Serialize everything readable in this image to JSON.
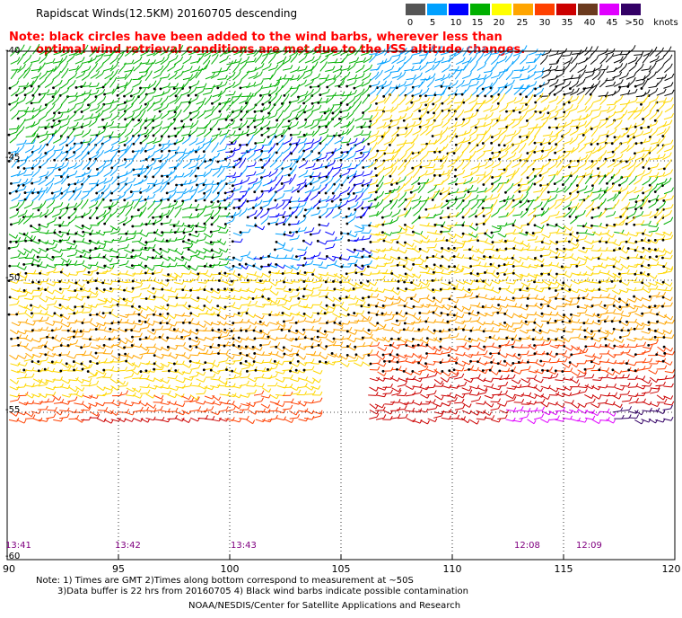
{
  "title": "Rapidscat Winds(12.5KM) 20160705 descending",
  "note": {
    "line1": "Note: black circles have been added to the wind barbs, wherever less than",
    "line2": "optimal wind retrieval conditions are met due to the ISS altitude changes."
  },
  "legend": {
    "items": [
      {
        "label": "0",
        "color": "#555555"
      },
      {
        "label": "5",
        "color": "#00a0ff"
      },
      {
        "label": "10",
        "color": "#0000ff"
      },
      {
        "label": "15",
        "color": "#00b000"
      },
      {
        "label": "20",
        "color": "#ffff00"
      },
      {
        "label": "25",
        "color": "#ffa500"
      },
      {
        "label": "30",
        "color": "#ff4000"
      },
      {
        "label": "35",
        "color": "#cc0000"
      },
      {
        "label": "40",
        "color": "#6b3a1e"
      },
      {
        "label": "45",
        "color": "#e000ff"
      },
      {
        "label": ">50",
        "color": "#330066"
      }
    ],
    "unit": "knots"
  },
  "axes": {
    "latitudes": [
      "-40",
      "-45",
      "-50",
      "-55",
      "-60"
    ],
    "longitudes": [
      "90",
      "95",
      "100",
      "105",
      "110",
      "115",
      "120"
    ]
  },
  "pass_times": [
    "13:41",
    "13:42",
    "13:43",
    "12:08",
    "12:09"
  ],
  "footnotes": {
    "line1": "Note: 1) Times are GMT 2)Times along bottom correspond to measurement at ~50S",
    "line2": "3)Data buffer is 22 hrs from 20160705 4) Black wind barbs indicate possible contamination",
    "credit": "NOAA/NESDIS/Center for Satellite Applications and Research"
  }
}
